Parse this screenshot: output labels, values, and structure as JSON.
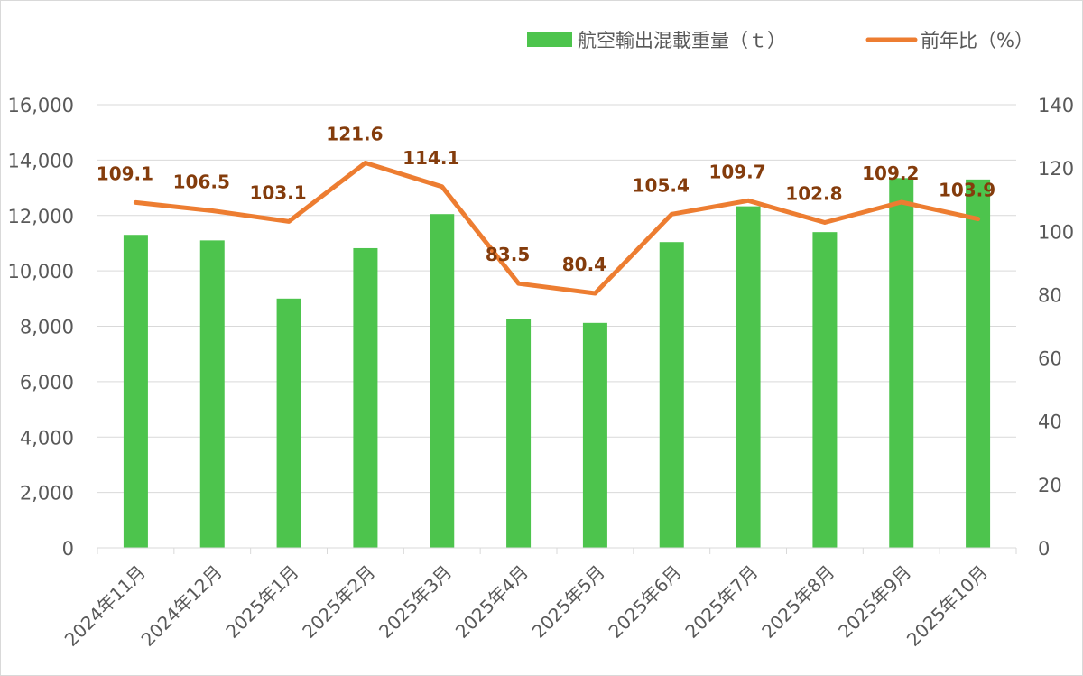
{
  "chart_data": {
    "type": "bar+line",
    "categories": [
      "2024年11月",
      "2024年12月",
      "2025年1月",
      "2025年2月",
      "2025年3月",
      "2025年4月",
      "2025年5月",
      "2025年6月",
      "2025年7月",
      "2025年8月",
      "2025年9月",
      "2025年10月"
    ],
    "series": [
      {
        "name": "航空輸出混載重量（ｔ）",
        "type": "bar",
        "axis": "left",
        "color": "#4dc44d",
        "values": [
          11300,
          11100,
          9000,
          10820,
          12050,
          8270,
          8120,
          11040,
          12330,
          11400,
          13350,
          13300
        ]
      },
      {
        "name": "前年比（%）",
        "type": "line",
        "axis": "right",
        "color": "#ed7d31",
        "values": [
          109.1,
          106.5,
          103.1,
          121.6,
          114.1,
          83.5,
          80.4,
          105.4,
          109.7,
          102.8,
          109.2,
          103.9
        ],
        "labels": [
          "109.1",
          "106.5",
          "103.1",
          "121.6",
          "114.1",
          "83.5",
          "80.4",
          "105.4",
          "109.7",
          "102.8",
          "109.2",
          "103.9"
        ]
      }
    ],
    "left_axis": {
      "ylim": [
        0,
        16000
      ],
      "ticks": [
        "0",
        "2,000",
        "4,000",
        "6,000",
        "8,000",
        "10,000",
        "12,000",
        "14,000",
        "16,000"
      ],
      "tick_values": [
        0,
        2000,
        4000,
        6000,
        8000,
        10000,
        12000,
        14000,
        16000
      ]
    },
    "right_axis": {
      "ylim": [
        0,
        140
      ],
      "ticks": [
        "0",
        "20",
        "40",
        "60",
        "80",
        "100",
        "120",
        "140"
      ],
      "tick_values": [
        0,
        20,
        40,
        60,
        80,
        100,
        120,
        140
      ]
    },
    "grid": true,
    "legend_position": "top-right",
    "label_color": "#843c0c",
    "grid_color": "#d9d9d9"
  }
}
